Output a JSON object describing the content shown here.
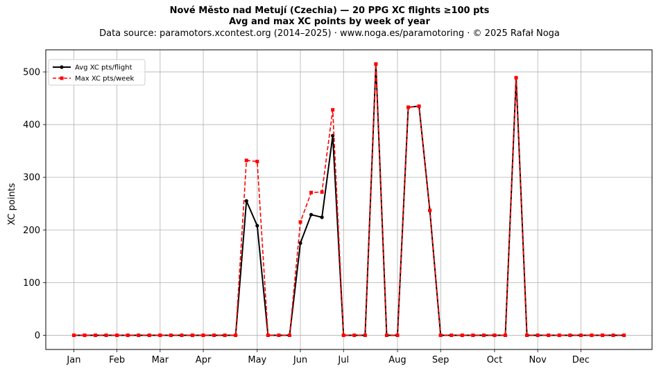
{
  "titles": {
    "line1": "Nové Město nad Metují (Czechia)  —  20 PPG XC flights ≥100 pts",
    "line2": "Avg and max XC points by week of year",
    "line3": "Data source: paramotors.xcontest.org (2014–2025)  ·  www.noga.es/paramotoring  ·  © 2025 Rafał Noga"
  },
  "chart_data": {
    "type": "line",
    "x": [
      1,
      2,
      3,
      4,
      5,
      6,
      7,
      8,
      9,
      10,
      11,
      12,
      13,
      14,
      15,
      16,
      17,
      18,
      19,
      20,
      21,
      22,
      23,
      24,
      25,
      26,
      27,
      28,
      29,
      30,
      31,
      32,
      33,
      34,
      35,
      36,
      37,
      38,
      39,
      40,
      41,
      42,
      43,
      44,
      45,
      46,
      47,
      48,
      49,
      50,
      51,
      52
    ],
    "series": [
      {
        "name": "Avg XC pts/flight",
        "color": "#000000",
        "style": "solid",
        "marker": "circle",
        "values": [
          0,
          0,
          0,
          0,
          0,
          0,
          0,
          0,
          0,
          0,
          0,
          0,
          0,
          0,
          0,
          0,
          255,
          208,
          0,
          0,
          0,
          175,
          229,
          224,
          379,
          0,
          0,
          0,
          515,
          0,
          0,
          433,
          435,
          237,
          0,
          0,
          0,
          0,
          0,
          0,
          0,
          489,
          0,
          0,
          0,
          0,
          0,
          0,
          0,
          0,
          0,
          0
        ]
      },
      {
        "name": "Max XC pts/week",
        "color": "#ff0000",
        "style": "dashed",
        "marker": "square",
        "values": [
          0,
          0,
          0,
          0,
          0,
          0,
          0,
          0,
          0,
          0,
          0,
          0,
          0,
          0,
          0,
          0,
          332,
          330,
          0,
          0,
          0,
          215,
          271,
          272,
          428,
          0,
          0,
          0,
          515,
          0,
          0,
          433,
          435,
          237,
          0,
          0,
          0,
          0,
          0,
          0,
          0,
          489,
          0,
          0,
          0,
          0,
          0,
          0,
          0,
          0,
          0,
          0
        ]
      }
    ],
    "xticks": [
      {
        "week": 1,
        "label": "Jan"
      },
      {
        "week": 5,
        "label": "Feb"
      },
      {
        "week": 9,
        "label": "Mar"
      },
      {
        "week": 13,
        "label": "Apr"
      },
      {
        "week": 18,
        "label": "May"
      },
      {
        "week": 22,
        "label": "Jun"
      },
      {
        "week": 26,
        "label": "Jul"
      },
      {
        "week": 31,
        "label": "Aug"
      },
      {
        "week": 35,
        "label": "Sep"
      },
      {
        "week": 40,
        "label": "Oct"
      },
      {
        "week": 44,
        "label": "Nov"
      },
      {
        "week": 48,
        "label": "Dec"
      }
    ],
    "yticks": [
      0,
      100,
      200,
      300,
      400,
      500
    ],
    "xlim": [
      -1.6,
      54.6
    ],
    "ylim": [
      -27,
      542
    ],
    "ylabel": "XC points",
    "xlabel": "",
    "grid": true,
    "legend": "top-left"
  }
}
